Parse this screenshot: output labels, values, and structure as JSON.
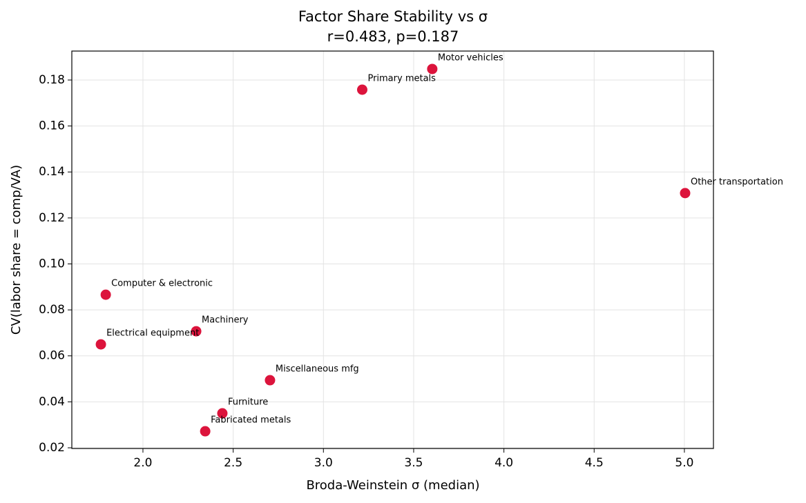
{
  "chart_data": {
    "type": "scatter",
    "title": "Factor Share Stability vs σ",
    "subtitle": "r=0.483, p=0.187",
    "xlabel": "Broda-Weinstein σ (median)",
    "ylabel": "CV(labor share = comp/VA)",
    "color": "#dc143c",
    "grid": true,
    "labels": [
      "Motor vehicles",
      "Primary metals",
      "Other transportation",
      "Computer & electronic",
      "Machinery",
      "Electrical equipment",
      "Miscellaneous mfg",
      "Furniture",
      "Fabricated metals"
    ],
    "x": [
      3.603,
      3.215,
      5.004,
      1.794,
      2.295,
      1.767,
      2.704,
      2.44,
      2.345
    ],
    "values": [
      0.1848,
      0.1758,
      0.1308,
      0.0866,
      0.0707,
      0.065,
      0.0494,
      0.035,
      0.0272
    ],
    "xlim": [
      1.606,
      5.161
    ],
    "ylim": [
      0.0197,
      0.1926
    ],
    "xticks": [
      {
        "value": 2,
        "label": "2.0"
      },
      2.5,
      {
        "value": 3,
        "label": "3.0"
      },
      3.5,
      {
        "value": 4,
        "label": "4.0"
      },
      4.5,
      {
        "value": 5,
        "label": "5.0"
      }
    ],
    "yticks": [
      0.02,
      0.04,
      0.06,
      0.08,
      {
        "value": 0.1,
        "label": "0.10"
      },
      0.12,
      0.14,
      0.16,
      0.18
    ]
  }
}
